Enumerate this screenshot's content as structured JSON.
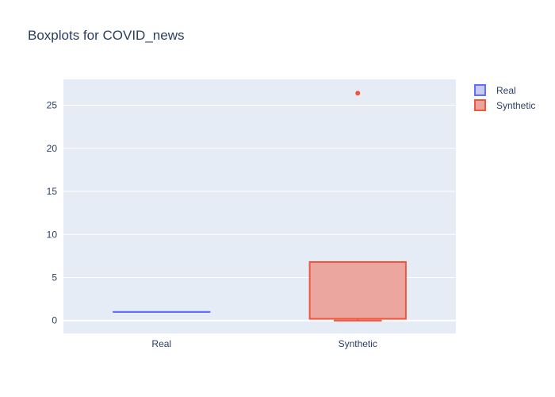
{
  "chart_data": {
    "type": "box",
    "title": "Boxplots for COVID_news",
    "xlabel": "",
    "ylabel": "",
    "categories": [
      "Real",
      "Synthetic"
    ],
    "ylim": [
      -1.5,
      28
    ],
    "yticks": [
      0,
      5,
      10,
      15,
      20,
      25
    ],
    "grid": true,
    "legend_position": "top-right",
    "series": [
      {
        "name": "Real",
        "color": "#636efa",
        "fill": "#c7caf7",
        "min": 1,
        "q1": 1,
        "median": 1,
        "q3": 1,
        "max": 1,
        "outliers": []
      },
      {
        "name": "Synthetic",
        "color": "#ef553b",
        "fill": "#eba39a",
        "min": 0,
        "q1": 0.2,
        "median": 0.2,
        "q3": 6.8,
        "max": 6.8,
        "outliers": [
          26.4
        ]
      }
    ]
  }
}
